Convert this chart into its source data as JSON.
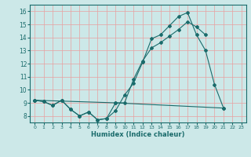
{
  "xlabel": "Humidex (Indice chaleur)",
  "xlim": [
    -0.5,
    23.5
  ],
  "ylim": [
    7.5,
    16.5
  ],
  "xticks": [
    0,
    1,
    2,
    3,
    4,
    5,
    6,
    7,
    8,
    9,
    10,
    11,
    12,
    13,
    14,
    15,
    16,
    17,
    18,
    19,
    20,
    21,
    22,
    23
  ],
  "yticks": [
    8,
    9,
    10,
    11,
    12,
    13,
    14,
    15,
    16
  ],
  "bg_color": "#cce8e8",
  "line_color": "#1a6b6b",
  "grid_color": "#e8a0a0",
  "line1_x": [
    0,
    1,
    2,
    3,
    4,
    5,
    6,
    7,
    8,
    9,
    10,
    11,
    12,
    13,
    14,
    15,
    16,
    17,
    18,
    19,
    20,
    21
  ],
  "line1_y": [
    9.2,
    9.1,
    8.8,
    9.2,
    8.5,
    8.0,
    8.3,
    7.7,
    7.8,
    8.4,
    9.6,
    10.5,
    12.1,
    13.9,
    14.2,
    14.9,
    15.6,
    15.9,
    14.2,
    13.0,
    10.4,
    8.6
  ],
  "line2_x": [
    0,
    1,
    2,
    3,
    4,
    5,
    6,
    7,
    8,
    9,
    10,
    11,
    12,
    13,
    14,
    15,
    16,
    17,
    18,
    19
  ],
  "line2_y": [
    9.2,
    9.1,
    8.8,
    9.2,
    8.5,
    8.0,
    8.3,
    7.7,
    7.8,
    9.0,
    9.0,
    10.8,
    12.2,
    13.2,
    13.6,
    14.1,
    14.6,
    15.2,
    14.8,
    14.2
  ],
  "line3_x": [
    0,
    9,
    21
  ],
  "line3_y": [
    9.2,
    9.0,
    8.6
  ]
}
